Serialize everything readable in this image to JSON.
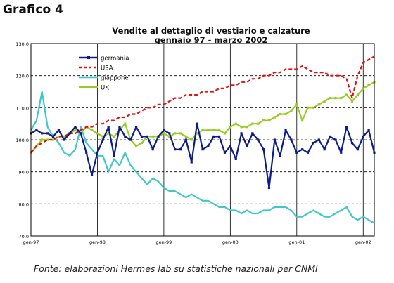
{
  "heading": "Grafico 4",
  "source_note": "Fonte: elaborazioni Hermes lab su statistiche nazionali per CNMI",
  "chart_data": {
    "type": "line",
    "title": "Vendite al dettaglio di vestiario e calzature",
    "subtitle": "gennaio 97 - marzo 2002",
    "xlabel": "",
    "ylabel": "",
    "ylim": [
      70,
      130
    ],
    "yticks": [
      70,
      80,
      90,
      100,
      110,
      120,
      130
    ],
    "ytick_labels": [
      "70.0",
      "80.0",
      "90.0",
      "100.0",
      "110.0",
      "120.0",
      "130.0"
    ],
    "x_tick_labels": [
      "gen-97",
      "gen-98",
      "gen-99",
      "gen-00",
      "gen-01",
      "gen-02"
    ],
    "x_tick_months": [
      0,
      12,
      24,
      36,
      48,
      60
    ],
    "months": 63,
    "grid": "horizontal dashed, vertical solid at years",
    "legend_placement": "top-left",
    "series": [
      {
        "name": "germania",
        "color": "#0b1c8a",
        "style": "solid-markers",
        "values": [
          102,
          103,
          102,
          102,
          101,
          103,
          100,
          102,
          104,
          102,
          96,
          89,
          96,
          100,
          104,
          95,
          104,
          101,
          100,
          104,
          101,
          101,
          97,
          101,
          103,
          102,
          97,
          97,
          100,
          93,
          105,
          97,
          98,
          101,
          101,
          96,
          98,
          94,
          102,
          98,
          102,
          100,
          97,
          85,
          100,
          95,
          103,
          100,
          96,
          97,
          96,
          99,
          100,
          97,
          101,
          100,
          96,
          104,
          99,
          97,
          101,
          103,
          96
        ]
      },
      {
        "name": "USA",
        "color": "#e01010",
        "style": "dashed",
        "values": [
          96,
          98,
          99,
          100,
          100,
          101,
          101,
          102,
          102,
          103,
          104,
          104,
          105,
          105,
          106,
          106,
          107,
          107,
          108,
          108,
          109,
          110,
          110,
          111,
          111,
          112,
          113,
          113,
          114,
          114,
          114,
          115,
          115,
          115,
          116,
          116,
          117,
          117,
          118,
          118,
          119,
          119,
          120,
          120,
          121,
          121,
          122,
          122,
          122,
          123,
          122,
          121,
          121,
          121,
          120,
          120,
          120,
          119,
          113,
          120,
          124,
          125,
          126
        ]
      },
      {
        "name": "giappone",
        "color": "#40c8c8",
        "style": "solid",
        "values": [
          103,
          106,
          115,
          104,
          101,
          99,
          96,
          95,
          97,
          104,
          99,
          97,
          95,
          95,
          90,
          94,
          92,
          96,
          92,
          90,
          88,
          86,
          88,
          87,
          85,
          84,
          84,
          83,
          82,
          83,
          82,
          81,
          81,
          80,
          79,
          79,
          78,
          78,
          77,
          78,
          77,
          77,
          78,
          78,
          79,
          79,
          79,
          78,
          76,
          76,
          77,
          78,
          77,
          76,
          76,
          77,
          78,
          79,
          76,
          75,
          76,
          75,
          74
        ]
      },
      {
        "name": "UK",
        "color": "#99cc22",
        "style": "solid-markers",
        "values": [
          96,
          98,
          100,
          100,
          100,
          101,
          101,
          102,
          103,
          102,
          104,
          103,
          102,
          101,
          102,
          101,
          103,
          105,
          100,
          98,
          99,
          101,
          101,
          101,
          102,
          101,
          102,
          102,
          101,
          100,
          102,
          103,
          103,
          103,
          103,
          102,
          104,
          105,
          104,
          104,
          105,
          105,
          106,
          106,
          107,
          108,
          108,
          109,
          111,
          106,
          110,
          110,
          111,
          112,
          113,
          113,
          113,
          114,
          112,
          114,
          116,
          117,
          118
        ]
      }
    ]
  }
}
